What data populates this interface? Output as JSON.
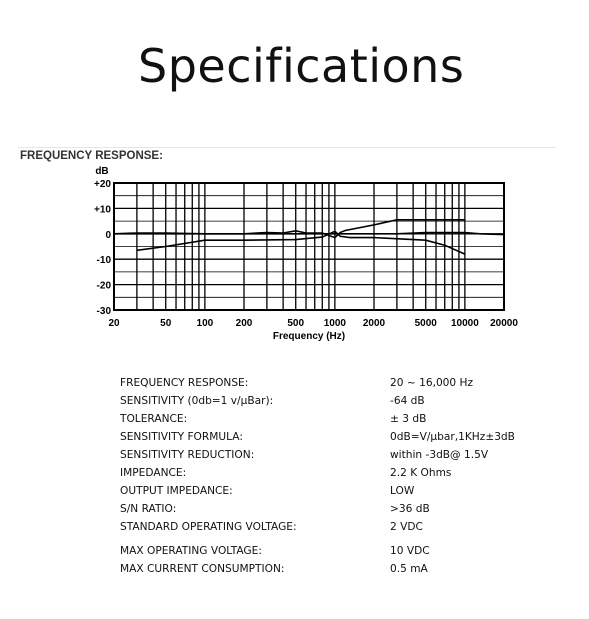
{
  "page": {
    "title": "Specifications"
  },
  "section": {
    "heading": "FREQUENCY RESPONSE:"
  },
  "chart_data": {
    "type": "line",
    "ylabel_unit": "dB",
    "xlabel": "Frequency (Hz)",
    "x_scale": "log",
    "xlim": [
      20,
      20000
    ],
    "ylim": [
      -30,
      20
    ],
    "x_tick_labels": [
      "20",
      "50",
      "100",
      "200",
      "500",
      "1000",
      "2000",
      "5000",
      "10000",
      "20000"
    ],
    "x_ticks": [
      20,
      50,
      100,
      200,
      500,
      1000,
      2000,
      5000,
      10000,
      20000
    ],
    "y_tick_labels": [
      "+20",
      "+10",
      "0",
      "-10",
      "-20",
      "-30"
    ],
    "y_ticks": [
      20,
      10,
      0,
      -10,
      -20,
      -30
    ],
    "grid": true,
    "series": [
      {
        "values": [
          [
            20,
            0
          ],
          [
            30,
            0.3
          ],
          [
            50,
            0.3
          ],
          [
            100,
            0
          ],
          [
            200,
            0
          ],
          [
            300,
            0.5
          ],
          [
            400,
            0.3
          ],
          [
            500,
            1.2
          ],
          [
            600,
            0.3
          ],
          [
            800,
            0.3
          ],
          [
            1000,
            -1.5
          ],
          [
            1100,
            0.5
          ],
          [
            1200,
            1.3
          ],
          [
            2000,
            3.5
          ],
          [
            3000,
            5.5
          ],
          [
            5000,
            5.5
          ],
          [
            10000,
            5.5
          ]
        ]
      },
      {
        "values": [
          [
            30,
            -6.5
          ],
          [
            50,
            -5
          ],
          [
            100,
            -2.5
          ],
          [
            200,
            -2.5
          ],
          [
            500,
            -2.3
          ],
          [
            800,
            -1.3
          ],
          [
            1000,
            1
          ],
          [
            1100,
            -1
          ],
          [
            1300,
            -1.5
          ],
          [
            2000,
            -1.5
          ],
          [
            5000,
            -2.5
          ],
          [
            7000,
            -4.5
          ],
          [
            10000,
            -8
          ]
        ]
      },
      {
        "values": [
          [
            20,
            0
          ],
          [
            50,
            0
          ],
          [
            100,
            0
          ],
          [
            500,
            0
          ],
          [
            1000,
            0
          ],
          [
            2000,
            0
          ],
          [
            3000,
            0
          ],
          [
            5000,
            0.5
          ],
          [
            7000,
            0.5
          ],
          [
            10000,
            0.5
          ],
          [
            13000,
            0
          ],
          [
            20000,
            -0.3
          ]
        ]
      }
    ]
  },
  "specs": [
    {
      "label": "FREQUENCY RESPONSE:",
      "value": "20 ~ 16,000 Hz"
    },
    {
      "label": "SENSITIVITY (0db=1 v/μBar):",
      "value": "-64 dB"
    },
    {
      "label": "TOLERANCE:",
      "value": "± 3 dB"
    },
    {
      "label": "SENSITIVITY FORMULA:",
      "value": "0dB=V/μbar,1KHz±3dB"
    },
    {
      "label": "SENSITIVITY REDUCTION:",
      "value": "within -3dB@ 1.5V"
    },
    {
      "label": "IMPEDANCE:",
      "value": "2.2 K Ohms"
    },
    {
      "label": "OUTPUT IMPEDANCE:",
      "value": "LOW"
    },
    {
      "label": "S/N RATIO:",
      "value": ">36 dB"
    },
    {
      "label": "STANDARD OPERATING VOLTAGE:",
      "value": "2 VDC"
    },
    {
      "label": "MAX OPERATING VOLTAGE:",
      "value": "10 VDC"
    },
    {
      "label": "MAX CURRENT CONSUMPTION:",
      "value": "0.5 mA"
    }
  ]
}
